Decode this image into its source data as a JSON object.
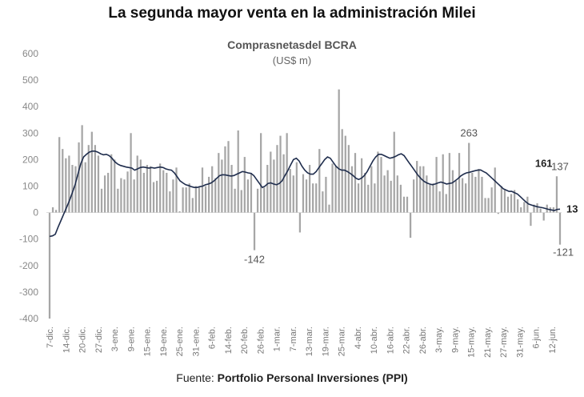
{
  "header": {
    "title": "La segunda mayor venta en la administración Milei",
    "subtitle": "Comprasnetasdel BCRA",
    "unit": "(US$ m)"
  },
  "footer": {
    "source_prefix": "Fuente:",
    "source_name": "Portfolio Personal Inversiones (PPI)"
  },
  "colors": {
    "bars": "#a6a6a6",
    "line": "#1f2d4d",
    "axis_text": "#888888"
  },
  "chart_data": {
    "type": "bar",
    "title": "Comprasnetasdel BCRA",
    "subtitle": "(US$ m)",
    "ylim": [
      -400,
      600
    ],
    "yticks": [
      600,
      500,
      400,
      300,
      200,
      100,
      0,
      -100,
      -200,
      -300,
      -400
    ],
    "grid": false,
    "xtick_labels": [
      "7-dic.",
      "14-dic.",
      "20-dic.",
      "27-dic.",
      "3-ene.",
      "9-ene.",
      "15-ene.",
      "19-ene.",
      "25-ene.",
      "31-ene.",
      "6-feb.",
      "14-feb.",
      "20-feb.",
      "26-feb.",
      "1-mar.",
      "7-mar.",
      "13-mar.",
      "19-mar.",
      "25-mar.",
      "4-abr.",
      "10-abr.",
      "16-abr.",
      "22-abr.",
      "26-abr.",
      "3-may.",
      "9-may.",
      "15-may.",
      "21-may.",
      "27-may.",
      "31-may.",
      "6-jun.",
      "12-jun."
    ],
    "series": [
      {
        "name": "",
        "type": "bar",
        "values": [
          -400,
          20,
          10,
          285,
          240,
          205,
          215,
          180,
          175,
          265,
          330,
          190,
          255,
          305,
          255,
          215,
          90,
          140,
          150,
          220,
          200,
          90,
          130,
          125,
          155,
          300,
          125,
          215,
          200,
          150,
          180,
          175,
          115,
          120,
          185,
          160,
          150,
          80,
          125,
          170,
          5,
          95,
          95,
          110,
          55,
          100,
          95,
          170,
          100,
          135,
          175,
          130,
          225,
          200,
          250,
          270,
          180,
          90,
          310,
          85,
          210,
          125,
          150,
          -142,
          90,
          300,
          95,
          180,
          230,
          200,
          255,
          290,
          220,
          300,
          165,
          140,
          190,
          -75,
          145,
          125,
          180,
          110,
          110,
          240,
          80,
          135,
          30,
          185,
          175,
          465,
          315,
          290,
          255,
          175,
          225,
          110,
          205,
          150,
          105,
          175,
          110,
          230,
          210,
          140,
          160,
          120,
          305,
          140,
          105,
          60,
          60,
          -95,
          125,
          195,
          175,
          175,
          140,
          105,
          110,
          210,
          80,
          220,
          70,
          225,
          160,
          120,
          225,
          130,
          110,
          263,
          150,
          135,
          165,
          135,
          55,
          55,
          95,
          170,
          -5,
          100,
          85,
          60,
          70,
          85,
          50,
          20,
          40,
          60,
          -50,
          30,
          35,
          15,
          -30,
          30,
          20,
          20,
          137,
          -121
        ]
      },
      {
        "name": "",
        "type": "line",
        "values": [
          -90,
          -88,
          -82,
          -55,
          -30,
          -5,
          20,
          45,
          75,
          105,
          145,
          185,
          210,
          220,
          228,
          232,
          232,
          228,
          222,
          218,
          220,
          215,
          205,
          192,
          183,
          178,
          175,
          172,
          170,
          168,
          160,
          165,
          170,
          172,
          170,
          168,
          170,
          168,
          170,
          172,
          170,
          165,
          162,
          160,
          150,
          135,
          120,
          112,
          105,
          102,
          98,
          95,
          95,
          98,
          100,
          105,
          108,
          112,
          120,
          130,
          140,
          143,
          142,
          140,
          138,
          140,
          145,
          150,
          155,
          153,
          150,
          148,
          140,
          125,
          110,
          95,
          100,
          110,
          112,
          108,
          105,
          110,
          120,
          140,
          158,
          180,
          200,
          205,
          195,
          175,
          160,
          150,
          145,
          145,
          155,
          170,
          185,
          200,
          210,
          205,
          190,
          175,
          165,
          160,
          160,
          155,
          148,
          140,
          130,
          125,
          130,
          140,
          155,
          175,
          195,
          210,
          220,
          220,
          215,
          210,
          205,
          208,
          212,
          218,
          222,
          215,
          200,
          185,
          170,
          155,
          140,
          128,
          118,
          112,
          108,
          105,
          108,
          112,
          115,
          112,
          108,
          110,
          112,
          120,
          128,
          138,
          145,
          150,
          152,
          155,
          158,
          160,
          161,
          155,
          150,
          140,
          130,
          120,
          110,
          100,
          90,
          85,
          80,
          80,
          75,
          70,
          60,
          50,
          40,
          32,
          28,
          25,
          22,
          20,
          18,
          15,
          12,
          10,
          8,
          12,
          13
        ]
      }
    ],
    "annotations": [
      {
        "text": "263",
        "x_index": 129,
        "value": 263,
        "bold": false
      },
      {
        "text": "161",
        "x_index": 152,
        "value": 161,
        "bold": true
      },
      {
        "text": "-142",
        "x_index": 63,
        "value": -142,
        "bold": false
      },
      {
        "text": "137",
        "x_index": 157,
        "value": 137,
        "bold": false
      },
      {
        "text": "-121",
        "x_index": 158,
        "value": -121,
        "bold": false
      },
      {
        "text": "13",
        "x_index": 160,
        "value": 13,
        "bold": true
      }
    ]
  }
}
